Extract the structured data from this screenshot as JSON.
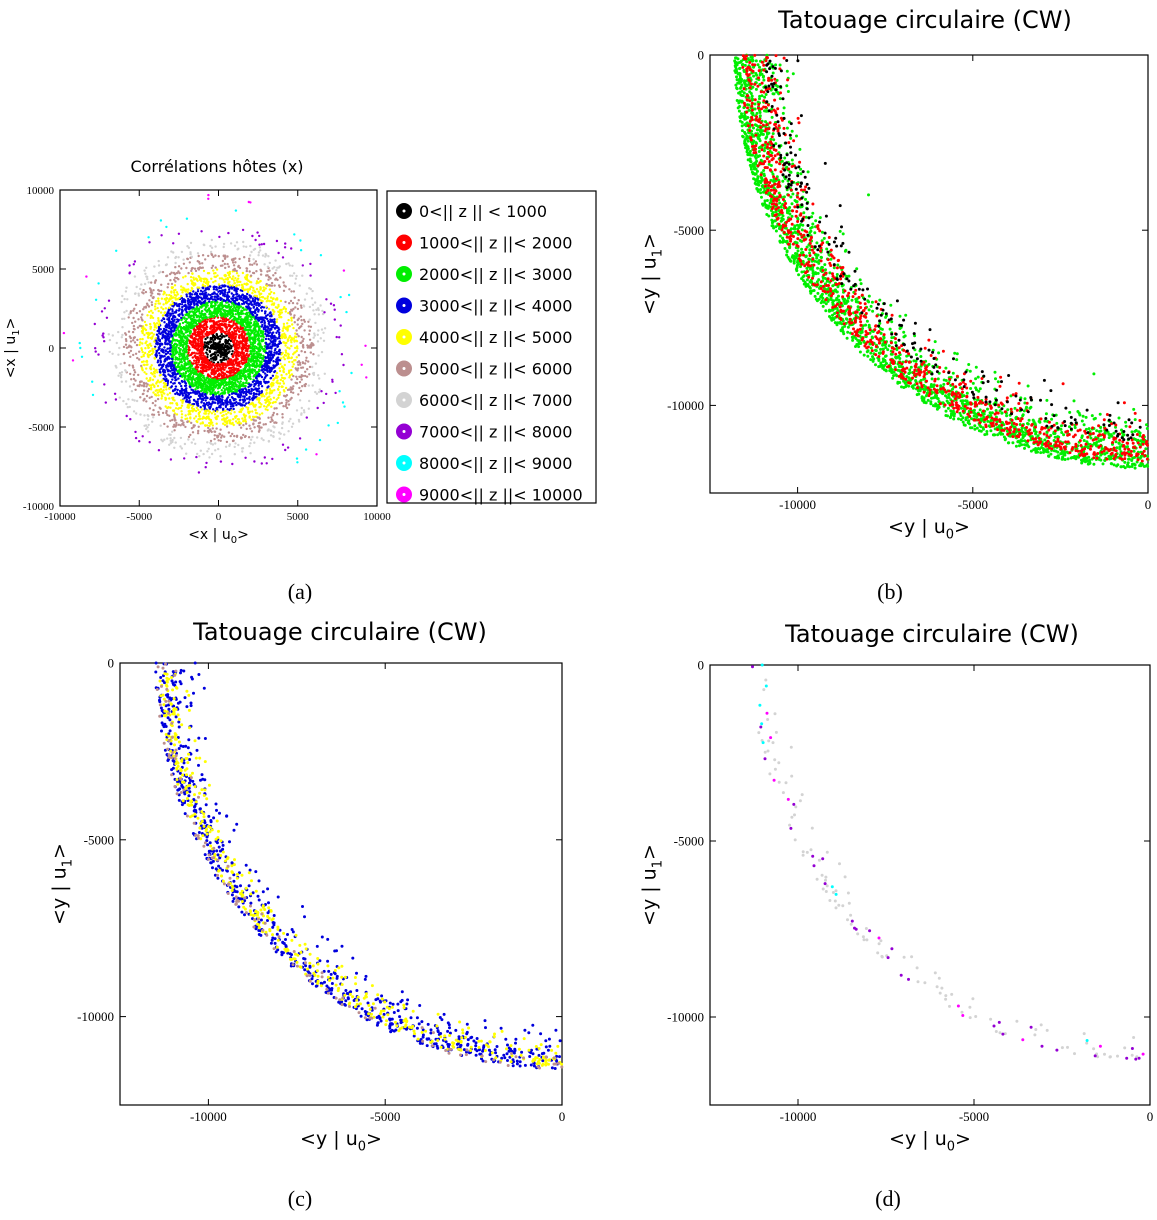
{
  "chart_data": [
    {
      "id": "a",
      "type": "scatter",
      "title": "Corrélations hôtes (x)",
      "xlabel": "<x | u",
      "xlabel_sub": "0",
      "xlabel_end": ">",
      "ylabel": "<x | u",
      "ylabel_sub": "1",
      "ylabel_end": ">",
      "xlim": [
        -10000,
        10000
      ],
      "ylim": [
        -10000,
        10000
      ],
      "xticks": [
        -10000,
        -5000,
        0,
        5000,
        10000
      ],
      "yticks": [
        -10000,
        -5000,
        0,
        5000,
        10000
      ],
      "legend_position": "right",
      "series": [
        {
          "name": "0<|| z || < 1000",
          "color": "#000000",
          "r_range": [
            0,
            1000
          ],
          "count": 260
        },
        {
          "name": "1000<|| z ||< 2000",
          "color": "#ff0000",
          "r_range": [
            1000,
            2000
          ],
          "count": 900
        },
        {
          "name": "2000<|| z ||< 3000",
          "color": "#00ee00",
          "r_range": [
            2000,
            3000
          ],
          "count": 1500
        },
        {
          "name": "3000<|| z ||< 4000",
          "color": "#0000dd",
          "r_range": [
            3000,
            4000
          ],
          "count": 1400
        },
        {
          "name": "4000<|| z ||< 5000",
          "color": "#ffff00",
          "r_range": [
            4000,
            5000
          ],
          "count": 900
        },
        {
          "name": "5000<|| z ||< 6000",
          "color": "#bc8f8f",
          "r_range": [
            5000,
            6000
          ],
          "count": 550
        },
        {
          "name": "6000<|| z ||< 7000",
          "color": "#d3d3d3",
          "r_range": [
            6000,
            7000
          ],
          "count": 300
        },
        {
          "name": "7000<|| z ||< 8000",
          "color": "#9400d3",
          "r_range": [
            7000,
            8000
          ],
          "count": 90
        },
        {
          "name": "8000<|| z ||< 9000",
          "color": "#00ffff",
          "r_range": [
            8000,
            9000
          ],
          "count": 30
        },
        {
          "name": "9000<|| z ||< 10000",
          "color": "#ff00ff",
          "r_range": [
            9000,
            10000
          ],
          "count": 12
        }
      ]
    },
    {
      "id": "b",
      "type": "scatter",
      "title": "Tatouage circulaire (CW)",
      "xlabel": "<y | u",
      "xlabel_sub": "0",
      "xlabel_end": ">",
      "ylabel": "<y | u",
      "ylabel_sub": "1",
      "ylabel_end": ">",
      "xlim": [
        -12500,
        0
      ],
      "ylim": [
        -12500,
        0
      ],
      "xticks": [
        -10000,
        -5000,
        0
      ],
      "yticks": [
        -10000,
        -5000,
        0
      ],
      "series": [
        {
          "color": "#00ee00",
          "arc_radius": 11800,
          "width": 1200,
          "count": 2200
        },
        {
          "color": "#ff0000",
          "arc_radius": 11600,
          "width": 1000,
          "count": 900
        },
        {
          "color": "#000000",
          "arc_radius": 11000,
          "width": 900,
          "count": 220
        }
      ]
    },
    {
      "id": "c",
      "type": "scatter",
      "title": "Tatouage circulaire (CW)",
      "xlabel": "<y | u",
      "xlabel_sub": "0",
      "xlabel_end": ">",
      "ylabel": "<y | u",
      "ylabel_sub": "1",
      "ylabel_end": ">",
      "xlim": [
        -12500,
        0
      ],
      "ylim": [
        -12500,
        0
      ],
      "xticks": [
        -10000,
        -5000,
        0
      ],
      "yticks": [
        -10000,
        -5000,
        0
      ],
      "series": [
        {
          "color": "#0000dd",
          "arc_radius": 11500,
          "width": 900,
          "count": 750
        },
        {
          "color": "#ffff00",
          "arc_radius": 11400,
          "width": 700,
          "count": 420
        },
        {
          "color": "#bc8f8f",
          "arc_radius": 11500,
          "width": 500,
          "count": 120
        }
      ]
    },
    {
      "id": "d",
      "type": "scatter",
      "title": "Tatouage circulaire (CW)",
      "xlabel": "<y | u",
      "xlabel_sub": "0",
      "xlabel_end": ">",
      "ylabel": "<y | u",
      "ylabel_sub": "1",
      "ylabel_end": ">",
      "xlim": [
        -12500,
        0
      ],
      "ylim": [
        -12500,
        0
      ],
      "xticks": [
        -10000,
        -5000,
        0
      ],
      "yticks": [
        -10000,
        -5000,
        0
      ],
      "series": [
        {
          "color": "#d3d3d3",
          "arc_radius": 11300,
          "width": 700,
          "count": 110
        },
        {
          "color": "#9400d3",
          "arc_radius": 11300,
          "width": 600,
          "count": 28
        },
        {
          "color": "#00ffff",
          "arc_radius": 11300,
          "width": 500,
          "count": 8
        },
        {
          "color": "#ff00ff",
          "arc_radius": 11300,
          "width": 500,
          "count": 10
        }
      ]
    }
  ],
  "subfigure_labels": [
    "(a)",
    "(b)",
    "(c)",
    "(d)"
  ]
}
